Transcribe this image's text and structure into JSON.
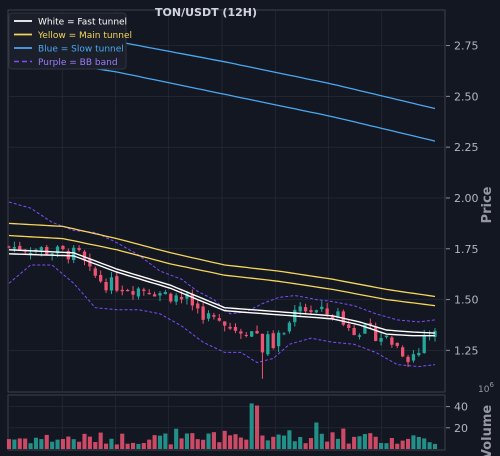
{
  "chart_data": {
    "type": "candlestick",
    "title": "TON/USDT (12H)",
    "price_axis": {
      "label": "Price",
      "ylim": [
        1.05,
        2.92
      ],
      "ticks": [
        1.25,
        1.5,
        1.75,
        2.0,
        2.25,
        2.5,
        2.75
      ],
      "tick_labels": [
        "1.25",
        "1.50",
        "1.75",
        "2.00",
        "2.25",
        "2.50",
        "2.75"
      ]
    },
    "volume_axis": {
      "label": "Volume",
      "exponent_label": "1e6",
      "ylim": [
        0,
        50
      ],
      "ticks": [
        20,
        40
      ],
      "tick_labels": [
        "20",
        "40"
      ]
    },
    "legend": {
      "placement": "top-left",
      "items": [
        {
          "label": "White = Fast tunnel",
          "color": "#ffffff",
          "style": "solid"
        },
        {
          "label": "Yellow = Main tunnel",
          "color": "#f5d55a",
          "style": "solid"
        },
        {
          "label": "Blue = Slow tunnel",
          "color": "#4aa8f0",
          "style": "solid"
        },
        {
          "label": "Purple = BB band",
          "color": "#7c4dff",
          "style": "dashed"
        }
      ]
    },
    "grid": true,
    "n_candles": 80,
    "colors": {
      "up": "#26a69a",
      "down": "#ef5372",
      "background": "#131722",
      "grid": "#2a2e39",
      "axis_text": "#b2b5be"
    },
    "close_path": [
      [
        0,
        1.76
      ],
      [
        5,
        1.75
      ],
      [
        10,
        1.73
      ],
      [
        13,
        1.72
      ],
      [
        15,
        1.63
      ],
      [
        18,
        1.58
      ],
      [
        22,
        1.56
      ],
      [
        26,
        1.55
      ],
      [
        30,
        1.52
      ],
      [
        33,
        1.5
      ],
      [
        36,
        1.43
      ],
      [
        40,
        1.37
      ],
      [
        44,
        1.35
      ],
      [
        47,
        1.33
      ],
      [
        49,
        1.28
      ],
      [
        51,
        1.34
      ],
      [
        54,
        1.46
      ],
      [
        57,
        1.44
      ],
      [
        61,
        1.42
      ],
      [
        64,
        1.36
      ],
      [
        68,
        1.33
      ],
      [
        70,
        1.31
      ],
      [
        72,
        1.27
      ],
      [
        74,
        1.22
      ],
      [
        76,
        1.24
      ],
      [
        77,
        1.33
      ],
      [
        79,
        1.33
      ]
    ],
    "fast_tunnel": {
      "upper": [
        [
          0,
          1.745
        ],
        [
          12,
          1.73
        ],
        [
          20,
          1.65
        ],
        [
          30,
          1.57
        ],
        [
          40,
          1.46
        ],
        [
          50,
          1.44
        ],
        [
          60,
          1.42
        ],
        [
          65,
          1.39
        ],
        [
          70,
          1.35
        ],
        [
          75,
          1.34
        ],
        [
          79,
          1.335
        ]
      ],
      "lower": [
        [
          0,
          1.725
        ],
        [
          12,
          1.715
        ],
        [
          20,
          1.635
        ],
        [
          30,
          1.555
        ],
        [
          40,
          1.445
        ],
        [
          50,
          1.425
        ],
        [
          60,
          1.405
        ],
        [
          65,
          1.375
        ],
        [
          70,
          1.33
        ],
        [
          75,
          1.322
        ],
        [
          79,
          1.322
        ]
      ]
    },
    "main_tunnel": {
      "upper": [
        [
          0,
          1.875
        ],
        [
          10,
          1.86
        ],
        [
          20,
          1.8
        ],
        [
          30,
          1.73
        ],
        [
          40,
          1.67
        ],
        [
          50,
          1.64
        ],
        [
          60,
          1.6
        ],
        [
          70,
          1.55
        ],
        [
          79,
          1.515
        ]
      ],
      "lower": [
        [
          0,
          1.815
        ],
        [
          10,
          1.8
        ],
        [
          20,
          1.745
        ],
        [
          30,
          1.675
        ],
        [
          40,
          1.62
        ],
        [
          50,
          1.59
        ],
        [
          60,
          1.55
        ],
        [
          70,
          1.5
        ],
        [
          79,
          1.47
        ]
      ]
    },
    "slow_tunnel": {
      "upper": [
        [
          0,
          2.84
        ],
        [
          20,
          2.77
        ],
        [
          40,
          2.67
        ],
        [
          60,
          2.56
        ],
        [
          79,
          2.44
        ]
      ],
      "lower": [
        [
          0,
          2.7
        ],
        [
          20,
          2.62
        ],
        [
          40,
          2.51
        ],
        [
          60,
          2.4
        ],
        [
          79,
          2.28
        ]
      ]
    },
    "bb_band": {
      "upper": [
        [
          0,
          1.98
        ],
        [
          4,
          1.95
        ],
        [
          8,
          1.88
        ],
        [
          12,
          1.84
        ],
        [
          16,
          1.83
        ],
        [
          20,
          1.78
        ],
        [
          24,
          1.72
        ],
        [
          28,
          1.64
        ],
        [
          32,
          1.6
        ],
        [
          35,
          1.54
        ],
        [
          38,
          1.5
        ],
        [
          41,
          1.43
        ],
        [
          44,
          1.44
        ],
        [
          47,
          1.48
        ],
        [
          50,
          1.51
        ],
        [
          53,
          1.52
        ],
        [
          57,
          1.5
        ],
        [
          60,
          1.49
        ],
        [
          64,
          1.47
        ],
        [
          68,
          1.43
        ],
        [
          72,
          1.4
        ],
        [
          76,
          1.39
        ],
        [
          79,
          1.4
        ]
      ],
      "lower": [
        [
          0,
          1.58
        ],
        [
          4,
          1.67
        ],
        [
          8,
          1.67
        ],
        [
          12,
          1.58
        ],
        [
          16,
          1.46
        ],
        [
          20,
          1.45
        ],
        [
          24,
          1.45
        ],
        [
          28,
          1.43
        ],
        [
          32,
          1.37
        ],
        [
          36,
          1.29
        ],
        [
          40,
          1.24
        ],
        [
          43,
          1.24
        ],
        [
          46,
          1.19
        ],
        [
          49,
          1.21
        ],
        [
          52,
          1.28
        ],
        [
          56,
          1.31
        ],
        [
          60,
          1.29
        ],
        [
          64,
          1.28
        ],
        [
          68,
          1.24
        ],
        [
          72,
          1.18
        ],
        [
          76,
          1.17
        ],
        [
          79,
          1.18
        ]
      ]
    },
    "volume_spike_indices": [
      45,
      46,
      57
    ]
  }
}
